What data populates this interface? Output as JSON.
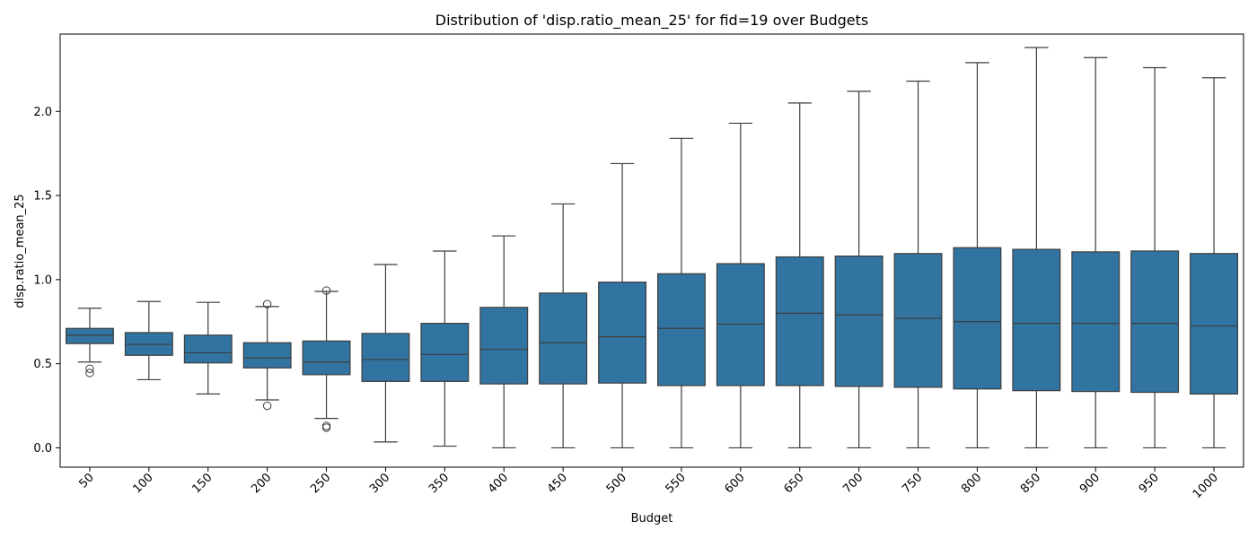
{
  "chart_data": {
    "type": "box",
    "title": "Distribution of 'disp.ratio_mean_25' for fid=19 over Budgets",
    "xlabel": "Budget",
    "ylabel": "disp.ratio_mean_25",
    "ylim": [
      -0.115,
      2.46
    ],
    "yticks": [
      "0.0",
      "0.5",
      "1.0",
      "1.5",
      "2.0"
    ],
    "grid": false,
    "box_color": "#3274a1",
    "line_color": "#3d3d3d",
    "categories": [
      "50",
      "100",
      "150",
      "200",
      "250",
      "300",
      "350",
      "400",
      "450",
      "500",
      "550",
      "600",
      "650",
      "700",
      "750",
      "800",
      "850",
      "900",
      "950",
      "1000"
    ],
    "boxes": [
      {
        "whisker_low": 0.51,
        "q1": 0.62,
        "median": 0.67,
        "q3": 0.71,
        "whisker_high": 0.83,
        "outliers": [
          0.47,
          0.445
        ]
      },
      {
        "whisker_low": 0.405,
        "q1": 0.55,
        "median": 0.615,
        "q3": 0.685,
        "whisker_high": 0.87,
        "outliers": []
      },
      {
        "whisker_low": 0.32,
        "q1": 0.505,
        "median": 0.565,
        "q3": 0.67,
        "whisker_high": 0.865,
        "outliers": []
      },
      {
        "whisker_low": 0.285,
        "q1": 0.475,
        "median": 0.535,
        "q3": 0.625,
        "whisker_high": 0.84,
        "outliers": [
          0.855,
          0.25
        ]
      },
      {
        "whisker_low": 0.175,
        "q1": 0.435,
        "median": 0.51,
        "q3": 0.635,
        "whisker_high": 0.93,
        "outliers": [
          0.935,
          0.13,
          0.12
        ]
      },
      {
        "whisker_low": 0.035,
        "q1": 0.395,
        "median": 0.525,
        "q3": 0.68,
        "whisker_high": 1.09,
        "outliers": []
      },
      {
        "whisker_low": 0.01,
        "q1": 0.395,
        "median": 0.555,
        "q3": 0.74,
        "whisker_high": 1.17,
        "outliers": []
      },
      {
        "whisker_low": 0.0,
        "q1": 0.38,
        "median": 0.585,
        "q3": 0.835,
        "whisker_high": 1.26,
        "outliers": []
      },
      {
        "whisker_low": 0.0,
        "q1": 0.38,
        "median": 0.625,
        "q3": 0.92,
        "whisker_high": 1.45,
        "outliers": []
      },
      {
        "whisker_low": 0.0,
        "q1": 0.385,
        "median": 0.66,
        "q3": 0.985,
        "whisker_high": 1.69,
        "outliers": []
      },
      {
        "whisker_low": 0.0,
        "q1": 0.37,
        "median": 0.71,
        "q3": 1.035,
        "whisker_high": 1.84,
        "outliers": []
      },
      {
        "whisker_low": 0.0,
        "q1": 0.37,
        "median": 0.735,
        "q3": 1.095,
        "whisker_high": 1.93,
        "outliers": []
      },
      {
        "whisker_low": 0.0,
        "q1": 0.37,
        "median": 0.8,
        "q3": 1.135,
        "whisker_high": 2.05,
        "outliers": []
      },
      {
        "whisker_low": 0.0,
        "q1": 0.365,
        "median": 0.79,
        "q3": 1.14,
        "whisker_high": 2.12,
        "outliers": []
      },
      {
        "whisker_low": 0.0,
        "q1": 0.36,
        "median": 0.77,
        "q3": 1.155,
        "whisker_high": 2.18,
        "outliers": []
      },
      {
        "whisker_low": 0.0,
        "q1": 0.35,
        "median": 0.75,
        "q3": 1.19,
        "whisker_high": 2.29,
        "outliers": []
      },
      {
        "whisker_low": 0.0,
        "q1": 0.34,
        "median": 0.74,
        "q3": 1.18,
        "whisker_high": 2.38,
        "outliers": []
      },
      {
        "whisker_low": 0.0,
        "q1": 0.335,
        "median": 0.74,
        "q3": 1.165,
        "whisker_high": 2.32,
        "outliers": []
      },
      {
        "whisker_low": 0.0,
        "q1": 0.33,
        "median": 0.74,
        "q3": 1.17,
        "whisker_high": 2.26,
        "outliers": []
      },
      {
        "whisker_low": 0.0,
        "q1": 0.32,
        "median": 0.725,
        "q3": 1.155,
        "whisker_high": 2.2,
        "outliers": []
      }
    ]
  }
}
